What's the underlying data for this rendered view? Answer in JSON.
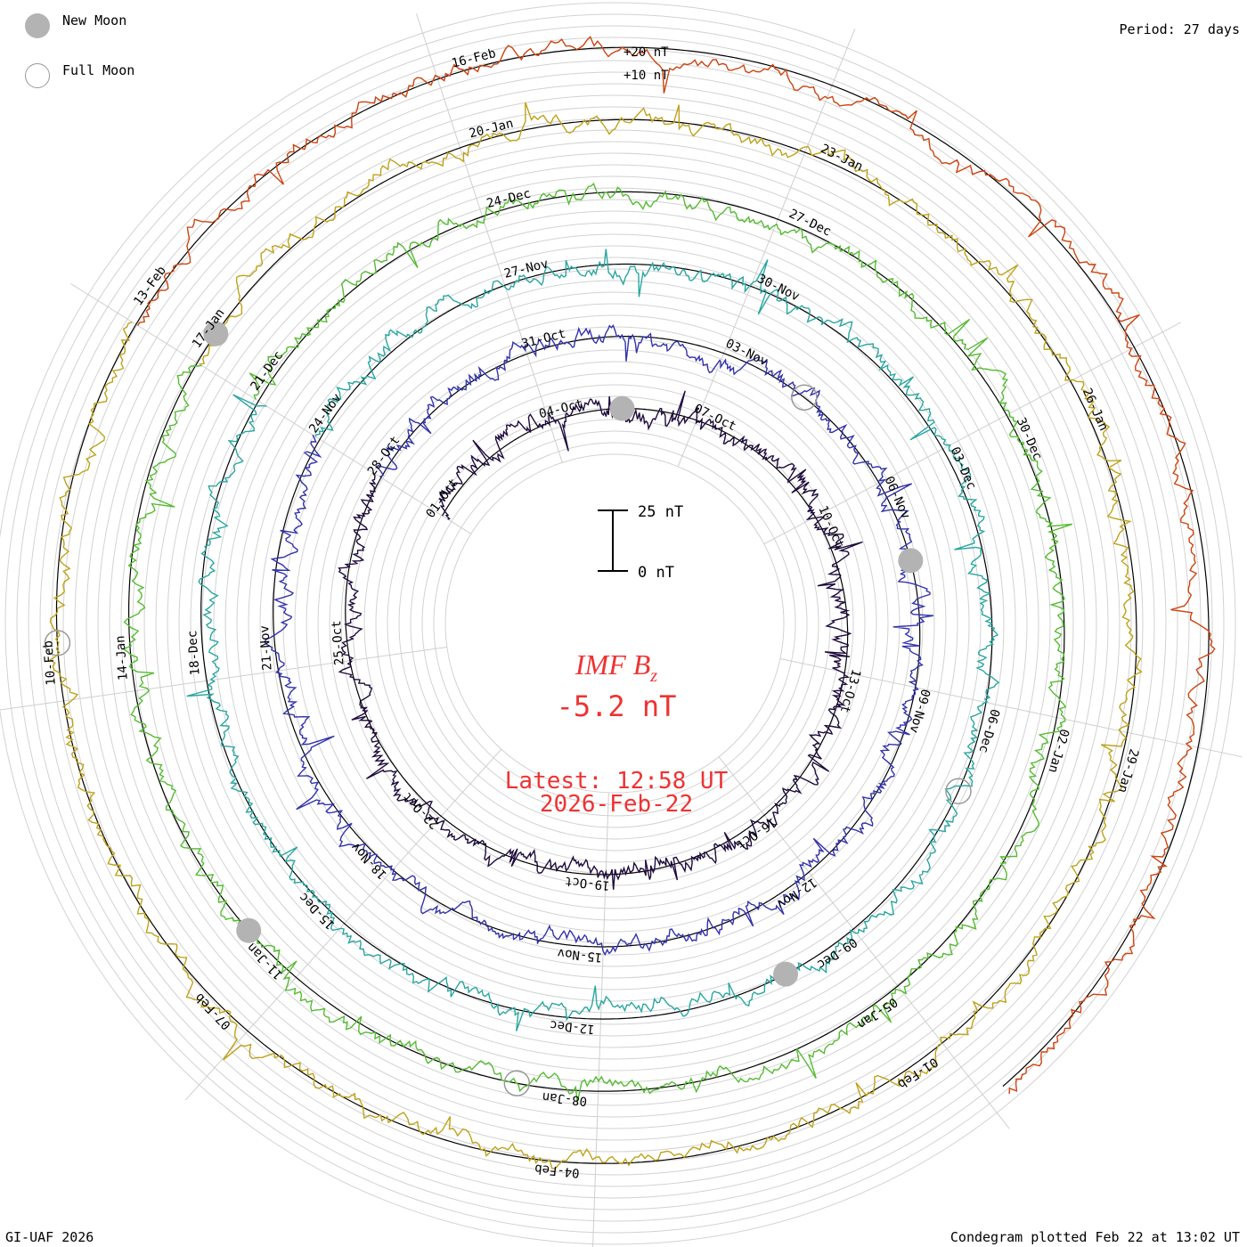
{
  "legend": {
    "new_moon_label": "New Moon",
    "full_moon_label": "Full Moon"
  },
  "period_label": "Period: 27 days",
  "footer_left": "GI-UAF 2026",
  "footer_right": "Condegram plotted Feb 22 at 13:02 UT",
  "colors": {
    "title": "#ee3333",
    "grid": "#c8c8c8",
    "moon_new": "#b3b3b3"
  },
  "chart_data": {
    "type": "line",
    "subtype": "condegram-spiral",
    "title": "IMF Bz",
    "title_main": "IMF B",
    "title_sub": "z",
    "current_value": "-5.2 nT",
    "latest_time": "Latest: 12:58 UT",
    "latest_date": "2026-Feb-22",
    "period_days": 27,
    "scale_labels": [
      "+20 nT",
      "+10 nT"
    ],
    "scale_bar": {
      "top_label": "25 nT",
      "bottom_label": "0 nT",
      "nT": 25
    },
    "series": [
      {
        "name": "turn-1",
        "color": "#1e0a3c",
        "date_labels": [
          "01-Oct",
          "04-Oct",
          "07-Oct",
          "10-Oct",
          "13-Oct",
          "16-Oct",
          "19-Oct",
          "22-Oct",
          "25-Oct"
        ]
      },
      {
        "name": "turn-2",
        "color": "#3333aa",
        "date_labels": [
          "28-Oct",
          "31-Oct",
          "03-Nov",
          "06-Nov",
          "09-Nov",
          "12-Nov",
          "15-Nov",
          "18-Nov",
          "21-Nov"
        ]
      },
      {
        "name": "turn-3",
        "color": "#2aa6a0",
        "date_labels": [
          "24-Nov",
          "27-Nov",
          "30-Nov",
          "03-Dec",
          "06-Dec",
          "09-Dec",
          "12-Dec",
          "15-Dec",
          "18-Dec"
        ]
      },
      {
        "name": "turn-4",
        "color": "#55bb33",
        "date_labels": [
          "21-Dec",
          "24-Dec",
          "27-Dec",
          "30-Dec",
          "02-Jan",
          "05-Jan",
          "08-Jan",
          "11-Jan",
          "14-Jan"
        ]
      },
      {
        "name": "turn-5",
        "color": "#bfa21a",
        "date_labels": [
          "17-Jan",
          "20-Jan",
          "23-Jan",
          "26-Jan",
          "29-Jan",
          "01-Feb",
          "04-Feb",
          "07-Feb",
          "10-Feb"
        ]
      },
      {
        "name": "turn-6",
        "color": "#cc4411",
        "date_labels": [
          "13-Feb",
          "16-Feb"
        ]
      }
    ],
    "moon_markers": [
      {
        "type": "new",
        "turn": 1,
        "label": "New Moon"
      },
      {
        "type": "full",
        "turn": 2,
        "label": "Full Moon"
      },
      {
        "type": "new",
        "turn": 2,
        "label": "New Moon"
      },
      {
        "type": "full",
        "turn": 3,
        "label": "Full Moon"
      },
      {
        "type": "new",
        "turn": 3,
        "label": "New Moon"
      },
      {
        "type": "full",
        "turn": 4,
        "label": "Full Moon"
      },
      {
        "type": "new",
        "turn": 4,
        "label": "New Moon"
      },
      {
        "type": "full",
        "turn": 5,
        "label": "Full Moon"
      },
      {
        "type": "new",
        "turn": 5,
        "label": "New Moon"
      }
    ]
  }
}
